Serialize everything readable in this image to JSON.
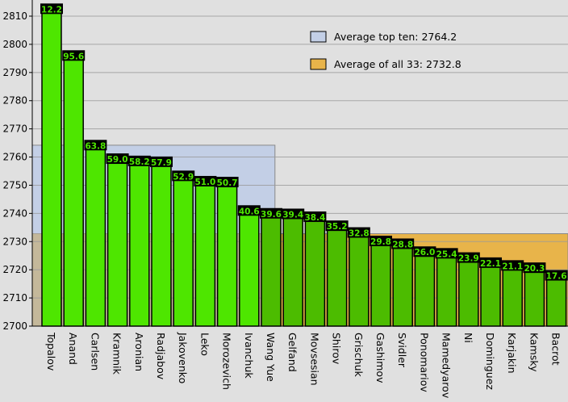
{
  "chart_data": {
    "type": "bar",
    "title": "",
    "xlabel": "",
    "ylabel": "",
    "ylim": [
      2700,
      2810
    ],
    "yticks": [
      2700,
      2710,
      2720,
      2730,
      2740,
      2750,
      2760,
      2770,
      2780,
      2790,
      2800,
      2810
    ],
    "grid": true,
    "categories": [
      "Topalov",
      "Anand",
      "Carlsen",
      "Kramnik",
      "Aronian",
      "Radjabov",
      "Jakovenko",
      "Leko",
      "Morozevich",
      "Ivanchuk",
      "Wang Yue",
      "Gelfand",
      "Movsesian",
      "Shirov",
      "Grischuk",
      "Gashimov",
      "Svidler",
      "Ponomariov",
      "Mamedyarov",
      "Ni",
      "Dominguez",
      "Karjakin",
      "Kamsky",
      "Bacrot"
    ],
    "values": [
      2812.2,
      2795.6,
      2763.8,
      2759.0,
      2758.2,
      2757.9,
      2752.9,
      2751.0,
      2750.7,
      2740.6,
      2739.6,
      2739.4,
      2738.4,
      2735.2,
      2732.8,
      2729.8,
      2728.8,
      2726.0,
      2725.4,
      2723.9,
      2722.1,
      2721.1,
      2720.3,
      2717.6
    ],
    "data_labels": [
      "12.2",
      "95.6",
      "63.8",
      "59.0",
      "58.2",
      "57.9",
      "52.9",
      "51.0",
      "50.7",
      "40.6",
      "39.6",
      "39.4",
      "38.4",
      "35.2",
      "32.8",
      "29.8",
      "28.8",
      "26.0",
      "25.4",
      "23.9",
      "22.1",
      "21.1",
      "20.3",
      "17.6"
    ],
    "top_ten_count": 10,
    "averages": [
      {
        "label": "Average top ten: 2764.2",
        "value": 2764.2,
        "color": "#c3cfe6"
      },
      {
        "label": "Average of all 33: 2732.8",
        "value": 2732.8,
        "color": "#e8b44a"
      }
    ],
    "colors": {
      "top_ten_bar": "#4ee600",
      "other_bar": "#4cbc00",
      "label_bg": "#000000",
      "label_text": "#4ee600",
      "overlap": "#c4b89a"
    },
    "legend_position": "top-right"
  }
}
